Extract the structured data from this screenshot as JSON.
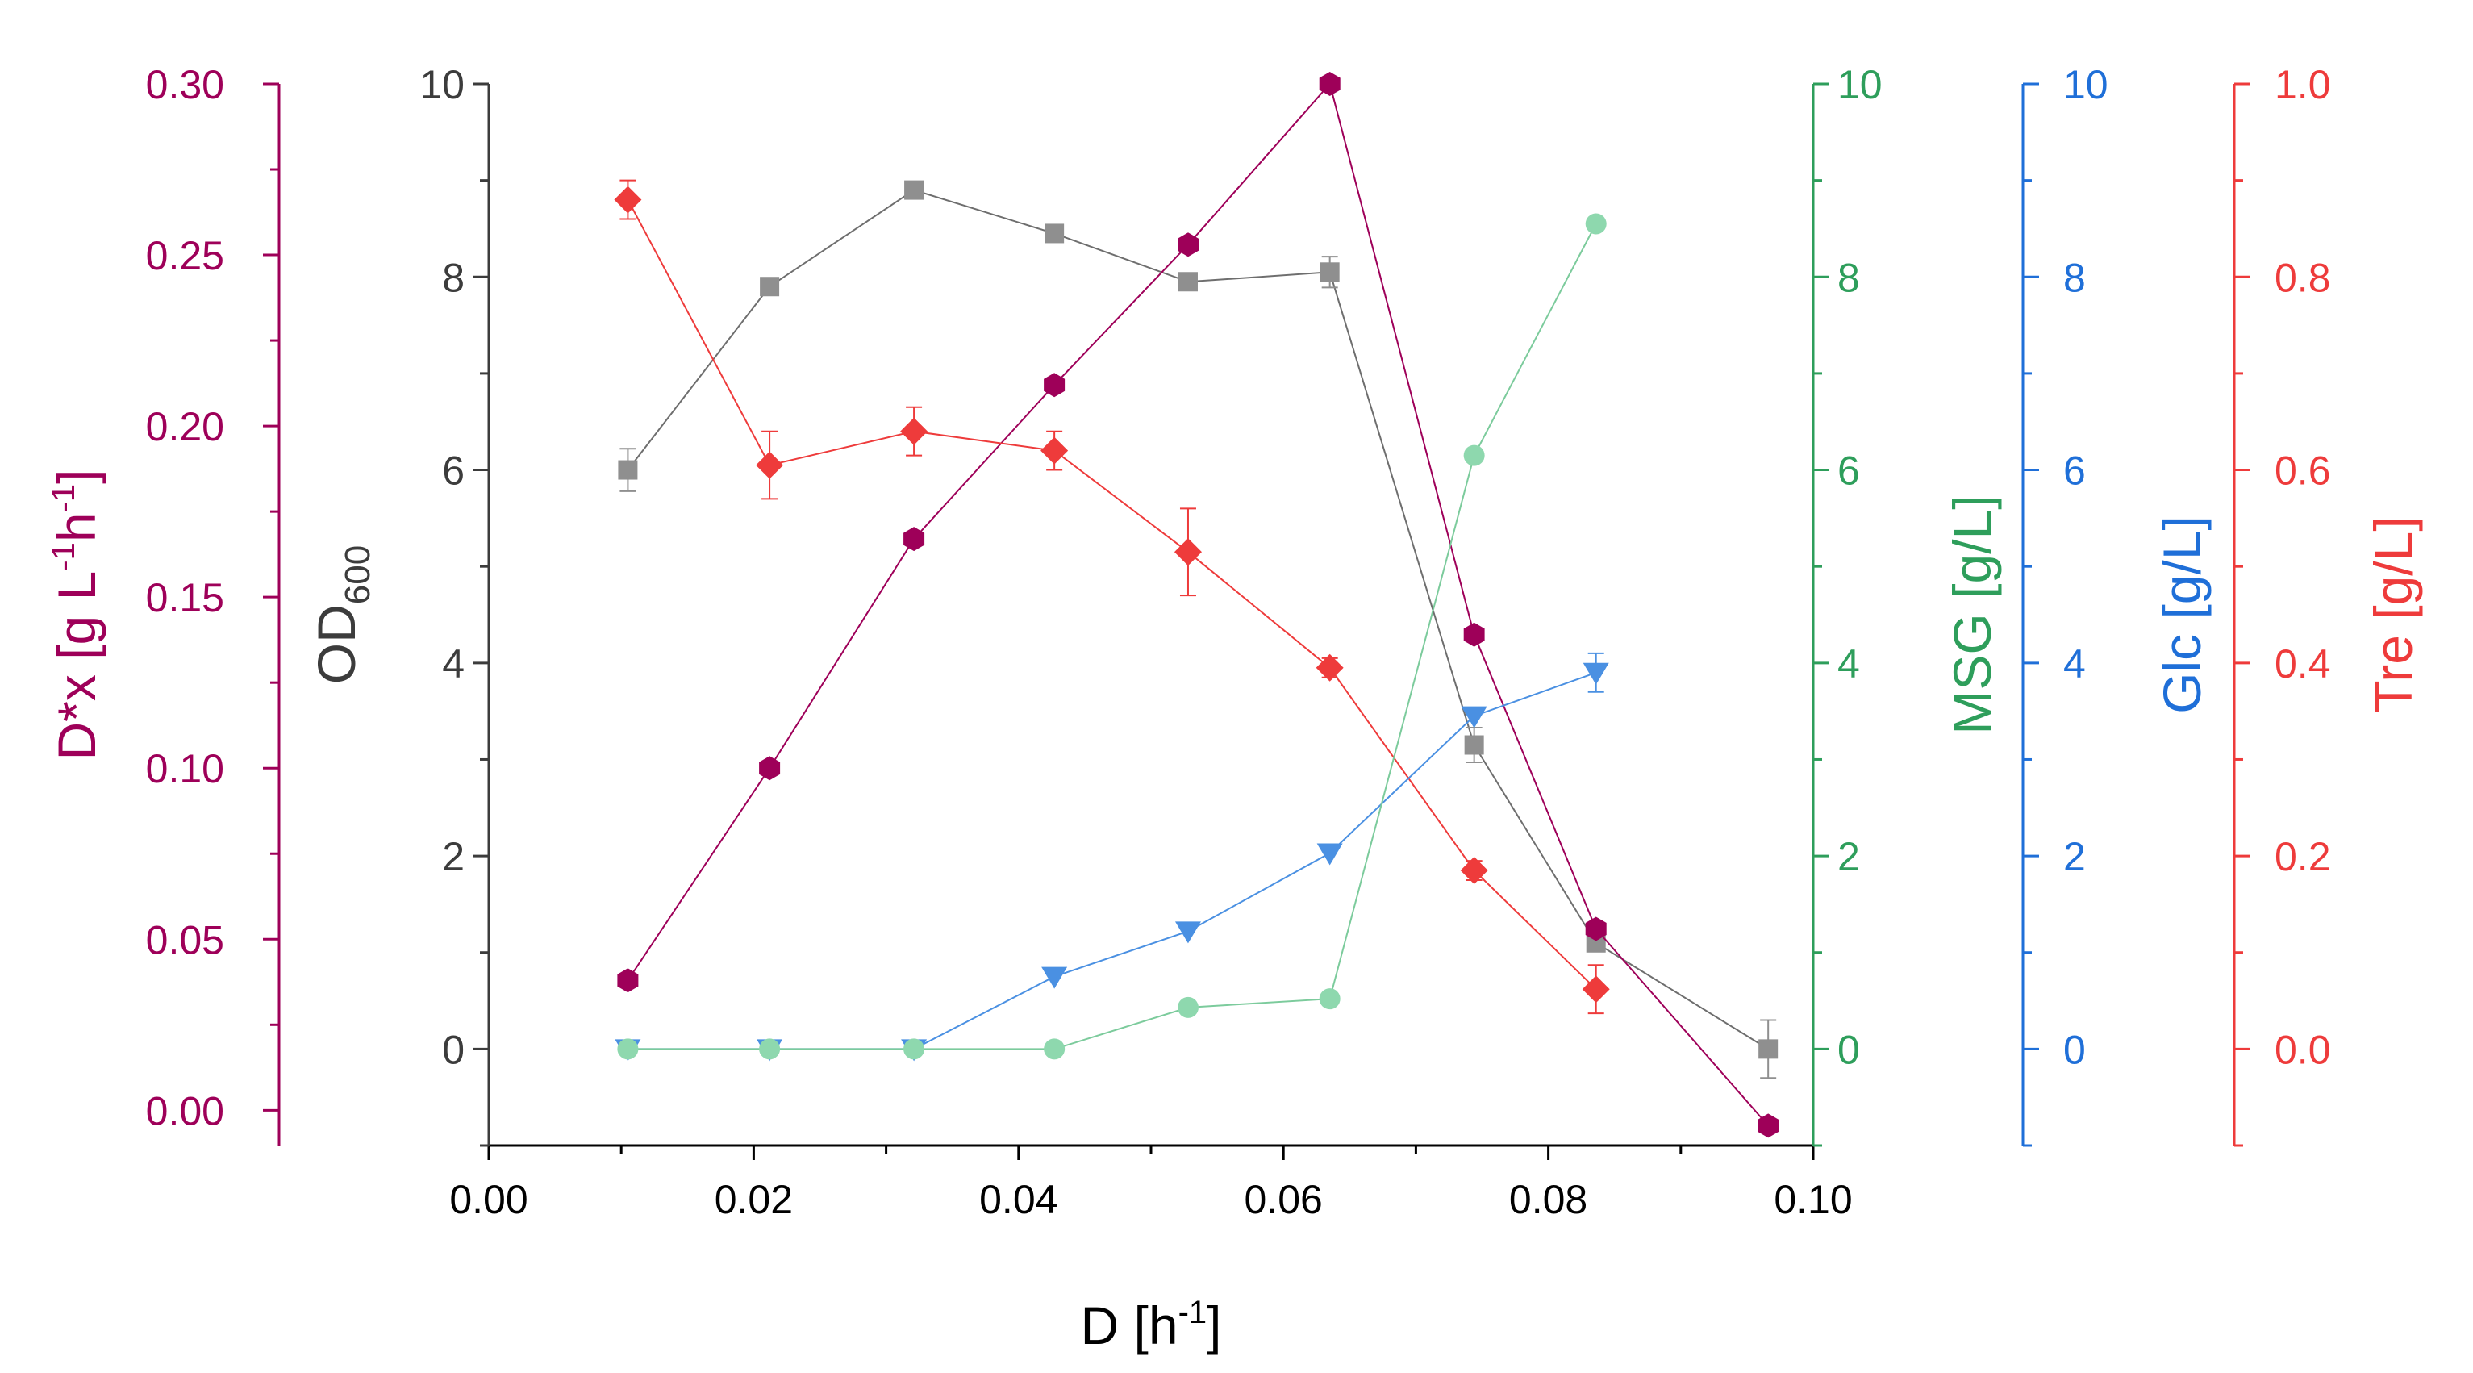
{
  "chart_data": {
    "type": "scatter",
    "x_axis": {
      "label": "D [h",
      "label_sup": "-1",
      "label_end": "]",
      "range": [
        0,
        0.1
      ],
      "ticks": [
        0,
        0.02,
        0.04,
        0.06,
        0.08,
        0.1
      ],
      "tick_labels": [
        "0.00",
        "0.02",
        "0.04",
        "0.06",
        "0.08",
        "0.10"
      ]
    },
    "y_axes": [
      {
        "id": "dx",
        "label_parts": [
          "D*x [g L",
          "-1",
          "h",
          "-1",
          "]"
        ],
        "color": "#9E0059",
        "range": [
          -0.0103,
          0.3
        ],
        "ticks": [
          0,
          0.05,
          0.1,
          0.15,
          0.2,
          0.25,
          0.3
        ],
        "tick_labels": [
          "0.00",
          "0.05",
          "0.10",
          "0.15",
          "0.20",
          "0.25",
          "0.30"
        ],
        "minor_ticks": [
          0.025,
          0.075,
          0.125,
          0.175,
          0.225,
          0.275
        ]
      },
      {
        "id": "od",
        "label": "OD",
        "label_sub": "600",
        "color": "#3C3C3C",
        "range": [
          -1,
          10
        ],
        "ticks": [
          0,
          2,
          4,
          6,
          8,
          10
        ],
        "tick_labels": [
          "0",
          "2",
          "4",
          "6",
          "8",
          "10"
        ],
        "minor_ticks": [
          -1,
          1,
          3,
          5,
          7,
          9
        ]
      },
      {
        "id": "msg",
        "label": "MSG [g/L]",
        "color": "#2E9E5B",
        "range": [
          -1,
          10
        ],
        "ticks": [
          0,
          2,
          4,
          6,
          8,
          10
        ],
        "tick_labels": [
          "0",
          "2",
          "4",
          "6",
          "8",
          "10"
        ],
        "minor_ticks": [
          -1,
          1,
          3,
          5,
          7,
          9
        ]
      },
      {
        "id": "glc",
        "label": "Glc [g/L]",
        "color": "#1F6FD8",
        "range": [
          -1,
          10
        ],
        "ticks": [
          0,
          2,
          4,
          6,
          8,
          10
        ],
        "tick_labels": [
          "0",
          "2",
          "4",
          "6",
          "8",
          "10"
        ],
        "minor_ticks": [
          -1,
          1,
          3,
          5,
          7,
          9
        ]
      },
      {
        "id": "tre",
        "label": "Tre [g/L]",
        "color": "#EE3B3B",
        "range": [
          -0.1,
          1.0
        ],
        "ticks": [
          0,
          0.2,
          0.4,
          0.6,
          0.8,
          1.0
        ],
        "tick_labels": [
          "0.0",
          "0.2",
          "0.4",
          "0.6",
          "0.8",
          "1.0"
        ],
        "minor_ticks": [
          -0.1,
          0.1,
          0.3,
          0.5,
          0.7,
          0.9
        ]
      }
    ],
    "series": [
      {
        "name": "OD600",
        "axis": "od",
        "marker": "square",
        "color": "#8F8F8F",
        "line_color": "#6E6E6E",
        "x": [
          0.0105,
          0.0212,
          0.0321,
          0.0427,
          0.0528,
          0.0635,
          0.0744,
          0.0836,
          0.0966
        ],
        "y": [
          6.0,
          7.9,
          8.9,
          8.45,
          7.95,
          8.05,
          3.15,
          1.1,
          0.0
        ],
        "err": [
          0.22,
          0.07,
          0.06,
          0.07,
          0.08,
          0.16,
          0.18,
          0.08,
          0.3
        ]
      },
      {
        "name": "D*x",
        "axis": "dx",
        "marker": "hexagon",
        "color": "#9E0059",
        "line_color": "#9E0059",
        "x": [
          0.0105,
          0.0212,
          0.0321,
          0.0427,
          0.0528,
          0.0635,
          0.0744,
          0.0836,
          0.0966
        ],
        "y": [
          0.038,
          0.1,
          0.167,
          0.212,
          0.253,
          0.3,
          0.139,
          0.053,
          -0.0045
        ],
        "err": [
          0,
          0,
          0,
          0,
          0,
          0,
          0,
          0,
          0
        ]
      },
      {
        "name": "Tre",
        "axis": "tre",
        "marker": "diamond",
        "color": "#EE3B3B",
        "line_color": "#EE3B3B",
        "x": [
          0.0105,
          0.0212,
          0.0321,
          0.0427,
          0.0528,
          0.0635,
          0.0744,
          0.0836
        ],
        "y": [
          0.88,
          0.605,
          0.64,
          0.62,
          0.515,
          0.395,
          0.185,
          0.062
        ],
        "err": [
          0.02,
          0.035,
          0.025,
          0.02,
          0.045,
          0.01,
          0.01,
          0.025
        ]
      },
      {
        "name": "Glc",
        "axis": "glc",
        "marker": "triangle-down",
        "color": "#4A90E2",
        "line_color": "#4A90E2",
        "x": [
          0.0105,
          0.0212,
          0.0321,
          0.0427,
          0.0528,
          0.0635,
          0.0744,
          0.0836
        ],
        "y": [
          0.0,
          0.0,
          0.0,
          0.75,
          1.22,
          2.03,
          3.45,
          3.9
        ],
        "err": [
          0,
          0,
          0,
          0,
          0,
          0,
          0,
          0.2
        ]
      },
      {
        "name": "MSG",
        "axis": "msg",
        "marker": "circle",
        "color": "#8ED8AE",
        "line_color": "#7CCB9C",
        "x": [
          0.0105,
          0.0212,
          0.0321,
          0.0427,
          0.0528,
          0.0635,
          0.0744,
          0.0836
        ],
        "y": [
          0.0,
          0.0,
          0.0,
          0.0,
          0.43,
          0.52,
          6.15,
          8.55
        ],
        "err": [
          0,
          0,
          0,
          0,
          0,
          0,
          0,
          0
        ]
      }
    ]
  }
}
